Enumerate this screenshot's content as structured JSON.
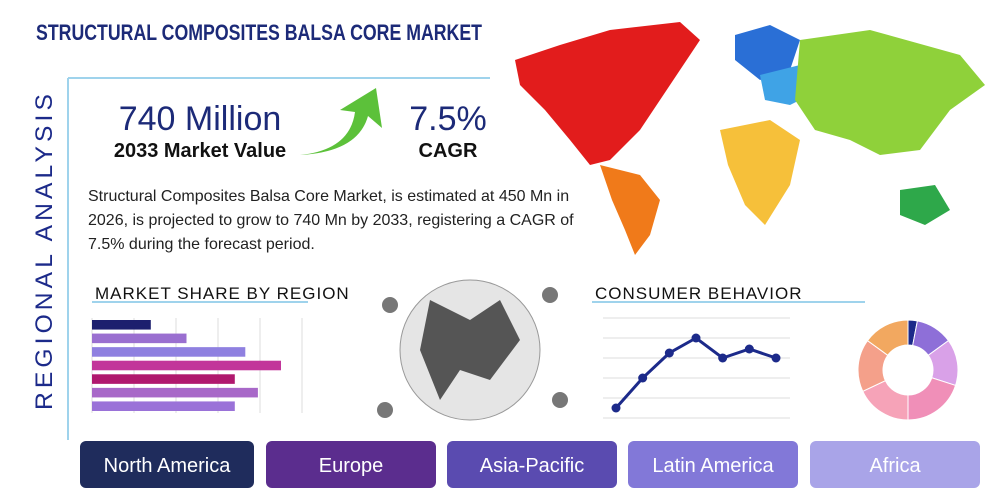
{
  "header": {
    "title": "STRUCTURAL COMPOSITES BALSA CORE MARKET",
    "side_label": "REGIONAL ANALYSIS"
  },
  "stats": {
    "value": "740 Million",
    "value_label": "2033 Market Value",
    "cagr": "7.5%",
    "cagr_label": "CAGR"
  },
  "description": "Structural Composites Balsa Core Market, is estimated at 450 Mn in 2026, is projected to grow to 740 Mn by 2033, registering a CAGR of 7.5% during the forecast period.",
  "market_share": {
    "title": "MARKET SHARE BY REGION",
    "type": "bar",
    "xlim": [
      0,
      100
    ],
    "values": [
      28,
      45,
      73,
      90,
      68,
      79,
      68
    ],
    "colors": [
      "#1c1f6e",
      "#9a6fd0",
      "#8f80e0",
      "#c2359a",
      "#b0186e",
      "#a868c8",
      "#9a72d8"
    ]
  },
  "consumer_behavior": {
    "title": "CONSUMER BEHAVIOR",
    "type": "line",
    "ylim": [
      0,
      100
    ],
    "color": "#1c2a8a",
    "values": [
      10,
      40,
      65,
      80,
      60,
      69,
      60
    ]
  },
  "donut": {
    "type": "pie",
    "values": [
      3,
      12,
      15,
      20,
      18,
      17,
      15
    ],
    "colors": [
      "#1c2a8a",
      "#8e6fd8",
      "#d9a1e8",
      "#f08fb8",
      "#f6a3b8",
      "#f4a08a",
      "#f2a860"
    ]
  },
  "regions": [
    "North America",
    "Europe",
    "Asia-Pacific",
    "Latin America",
    "Africa"
  ]
}
